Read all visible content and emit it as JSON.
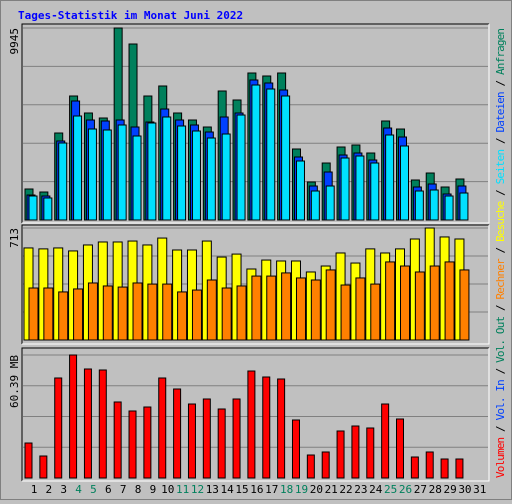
{
  "chart_data": [
    {
      "type": "bar",
      "title": "Tages-Statistik im Monat Juni 2022",
      "ylim": [
        0,
        9945
      ],
      "yticks": [
        9945
      ],
      "grid": true,
      "series": [
        {
          "name": "Anfragen",
          "color": "#00805c",
          "values": [
            1606,
            1450,
            4506,
            6423,
            5542,
            5283,
            9945,
            9116,
            6423,
            6941,
            5542,
            5180,
            4817,
            6682,
            6216,
            7614,
            7459,
            7614,
            3678,
            1968,
            2952,
            3781,
            3885,
            3470,
            5128,
            4713,
            2072,
            2434,
            1709,
            2124,
            null
          ]
        },
        {
          "name": "Dateien",
          "color": "#0040ff",
          "values": [
            1295,
            1243,
            4092,
            6164,
            5180,
            5128,
            5180,
            4817,
            5076,
            5749,
            5180,
            4921,
            4558,
            5335,
            5542,
            7252,
            7096,
            6734,
            3263,
            1761,
            2486,
            3367,
            3470,
            3108,
            4765,
            4299,
            1709,
            1865,
            1347,
            1761,
            null
          ]
        },
        {
          "name": "Seiten",
          "color": "#00e0ff",
          "values": [
            1243,
            1140,
            3988,
            5387,
            4713,
            4662,
            4921,
            4351,
            5024,
            5335,
            4869,
            4610,
            4247,
            4454,
            5438,
            6992,
            6785,
            6423,
            3056,
            1502,
            1761,
            3211,
            3315,
            2952,
            4403,
            3833,
            1502,
            1554,
            1243,
            1398,
            null
          ]
        }
      ]
    },
    {
      "type": "bar",
      "ylim": [
        0,
        713
      ],
      "yticks": [
        713
      ],
      "grid": true,
      "series": [
        {
          "name": "Besuche",
          "color": "#ffff00",
          "values": [
            586,
            580,
            586,
            567,
            605,
            624,
            624,
            630,
            605,
            649,
            573,
            573,
            630,
            528,
            547,
            452,
            509,
            503,
            503,
            433,
            471,
            554,
            490,
            580,
            554,
            580,
            643,
            713,
            656,
            643,
            null
          ]
        },
        {
          "name": "Rechner",
          "color": "#ff8000",
          "values": [
            331,
            331,
            306,
            325,
            363,
            344,
            337,
            363,
            356,
            356,
            306,
            318,
            382,
            331,
            344,
            407,
            407,
            427,
            395,
            382,
            446,
            350,
            395,
            356,
            497,
            471,
            433,
            471,
            497,
            446,
            null
          ]
        }
      ]
    },
    {
      "type": "bar",
      "ylim": [
        0,
        60.39
      ],
      "yticks": [
        {
          "value": 60.39,
          "label": "60.39 MB"
        }
      ],
      "grid": true,
      "categories": [
        "1",
        "2",
        "3",
        "4",
        "5",
        "6",
        "7",
        "8",
        "9",
        "10",
        "11",
        "12",
        "13",
        "14",
        "15",
        "16",
        "17",
        "18",
        "19",
        "20",
        "21",
        "22",
        "23",
        "24",
        "25",
        "26",
        "27",
        "28",
        "29",
        "30",
        "31"
      ],
      "highlight_indices": [
        3,
        4,
        10,
        11,
        17,
        18,
        24,
        25
      ],
      "highlight_color": "#00805c",
      "legend_separator": "/",
      "series": [
        {
          "name": "Volumen",
          "color": "#ff0000",
          "values": [
            17.18,
            10.8,
            49.1,
            60.39,
            53.52,
            53.03,
            37.32,
            32.9,
            34.86,
            49.1,
            43.7,
            36.33,
            38.79,
            33.88,
            38.79,
            52.53,
            49.59,
            48.61,
            28.48,
            11.29,
            12.77,
            23.08,
            25.53,
            24.55,
            36.33,
            28.97,
            10.31,
            12.77,
            9.33,
            9.33,
            null
          ]
        },
        {
          "name": "Vol. In",
          "color": "#0040ff",
          "values": [
            null,
            null,
            null,
            null,
            null,
            null,
            null,
            null,
            null,
            null,
            null,
            null,
            null,
            null,
            null,
            null,
            null,
            null,
            null,
            null,
            null,
            null,
            null,
            null,
            null,
            null,
            null,
            null,
            null,
            null,
            null
          ]
        },
        {
          "name": "Vol. Out",
          "color": "#00805c",
          "values": [
            null,
            null,
            null,
            null,
            null,
            null,
            null,
            null,
            null,
            null,
            null,
            null,
            null,
            null,
            null,
            null,
            null,
            null,
            null,
            null,
            null,
            null,
            null,
            null,
            null,
            null,
            null,
            null,
            null,
            null,
            null
          ]
        }
      ]
    }
  ]
}
